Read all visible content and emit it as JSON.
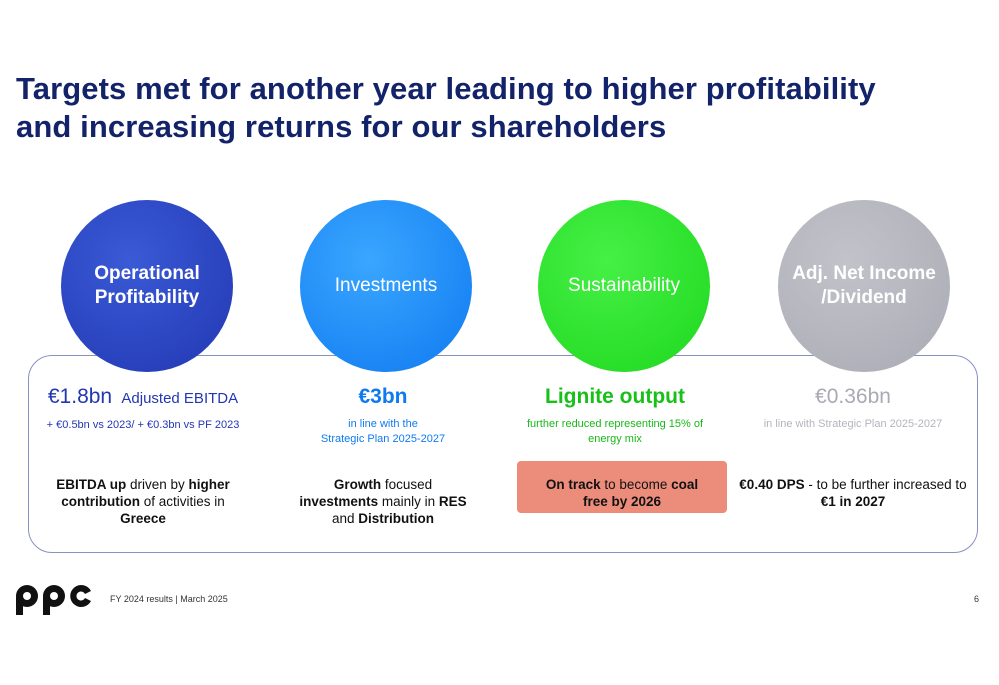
{
  "title": {
    "line1": "Targets met for another year leading to higher profitability",
    "line2": "and increasing returns for our shareholders"
  },
  "colors": {
    "navy": "#13236a",
    "blue": "#2237b2",
    "light_blue": "#0f7af0",
    "green": "#1ed81e",
    "grey": "#a9aab3",
    "highlight": "#ec8d7c"
  },
  "pillars": [
    {
      "circle_line1": "Operational",
      "circle_line2": "Profitability",
      "value": "€1.8bn",
      "value_suffix": "Adjusted EBITDA",
      "sub": "+ €0.5bn vs 2023/ + €0.3bn vs PF 2023",
      "desc_a": "EBITDA up",
      "desc_b": " driven by ",
      "desc_c": "higher contribution",
      "desc_d": " of activities in ",
      "desc_e": "Greece"
    },
    {
      "circle_line1": "Investments",
      "value": "€3bn",
      "sub_line1": "in line with the",
      "sub_line2": "Strategic Plan 2025-2027",
      "desc_a": "Growth",
      "desc_b": " focused ",
      "desc_c": "investments",
      "desc_d": " mainly in ",
      "desc_e": "RES",
      "desc_f": " and ",
      "desc_g": "Distribution"
    },
    {
      "circle_line1": "Sustainability",
      "value": "Lignite output",
      "sub_line1": "further reduced representing 15% of",
      "sub_line2": "energy mix",
      "desc_a": "On track",
      "desc_b": " to become ",
      "desc_c": "coal",
      "desc_d": "free by 2026"
    },
    {
      "circle_line1": "Adj. Net Income",
      "circle_line2": "/Dividend",
      "value": "€0.36bn",
      "sub": "in line with Strategic Plan 2025-2027",
      "desc_a": "€0.40 DPS",
      "desc_b": " - to be further increased to ",
      "desc_c": "€1 in 2027"
    }
  ],
  "footer": {
    "logo_text": "ppc",
    "text": "FY 2024 results | March 2025",
    "page": "6"
  }
}
